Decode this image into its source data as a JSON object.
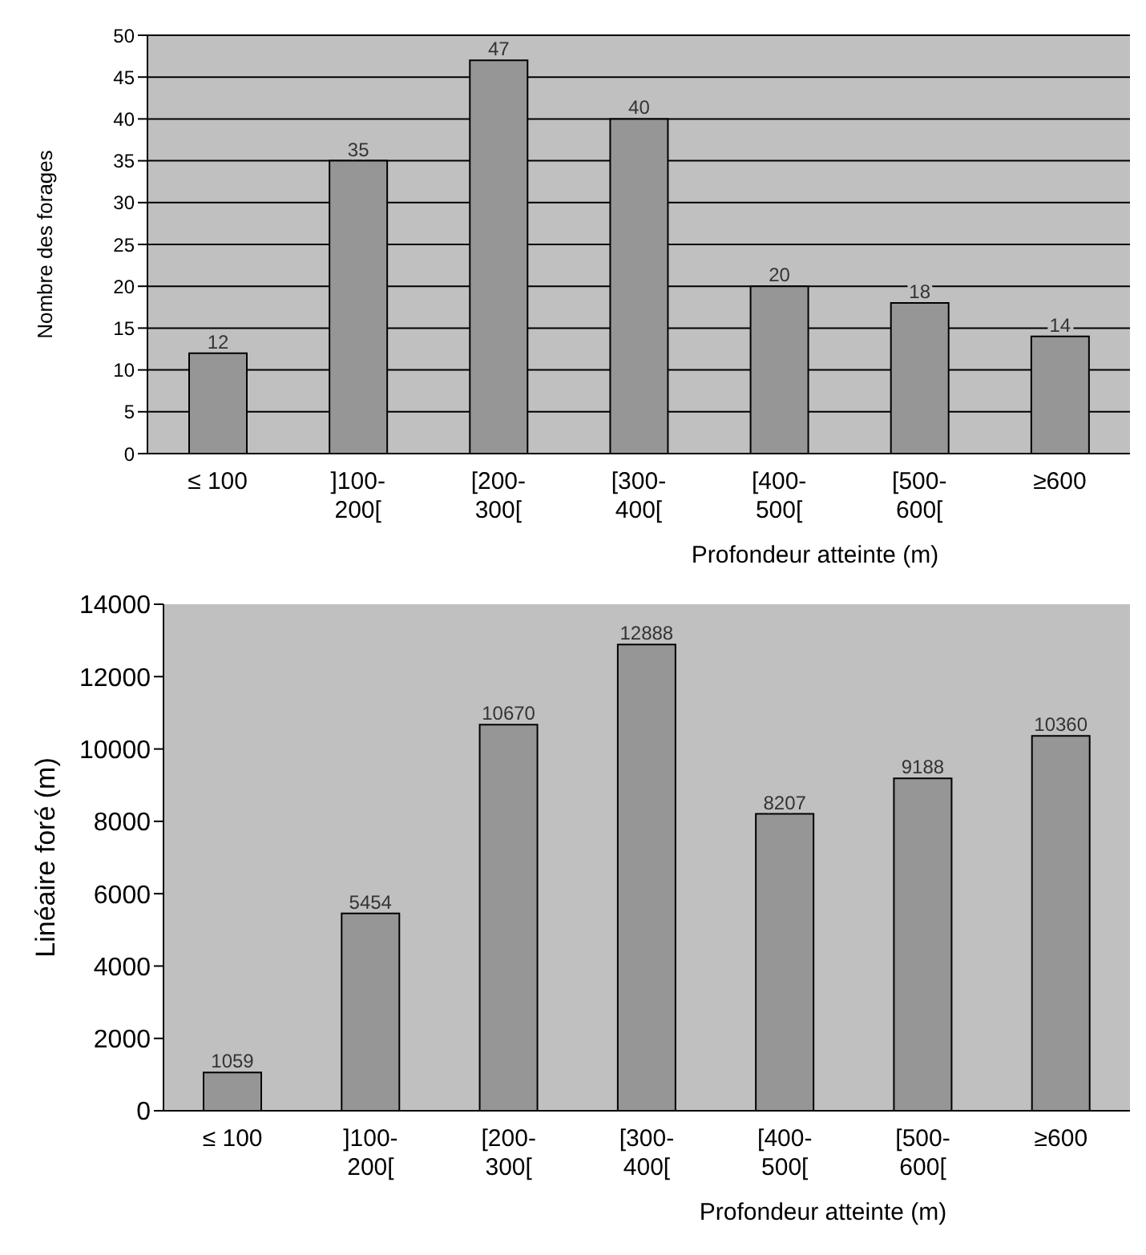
{
  "chart_data": [
    {
      "type": "bar",
      "categories": [
        "≤ 100",
        "]100-200[",
        "[200-300[",
        "[300-400[",
        "[400-500[",
        "[500-600[",
        "≥600"
      ],
      "values": [
        12,
        35,
        47,
        40,
        20,
        18,
        14
      ],
      "color": "#969696",
      "ylabel": "Nombre des forages",
      "xlabel": "Profondeur atteinte (m)",
      "ylim": [
        0,
        50
      ],
      "yticks": [
        0,
        5,
        10,
        15,
        20,
        25,
        30,
        35,
        40,
        45,
        50
      ],
      "grid": "y",
      "data_labels": true
    },
    {
      "type": "bar",
      "categories": [
        "≤ 100",
        "]100-200[",
        "[200-300[",
        "[300-400[",
        "[400-500[",
        "[500-600[",
        "≥600"
      ],
      "values": [
        1059,
        5454,
        10670,
        12888,
        8207,
        9188,
        10360
      ],
      "color": "#969696",
      "ylabel": "Linéaire foré (m)",
      "xlabel": "Profondeur atteinte (m)",
      "ylim": [
        0,
        14000
      ],
      "yticks": [
        0,
        2000,
        4000,
        6000,
        8000,
        10000,
        12000,
        14000
      ],
      "data_labels": true
    }
  ]
}
